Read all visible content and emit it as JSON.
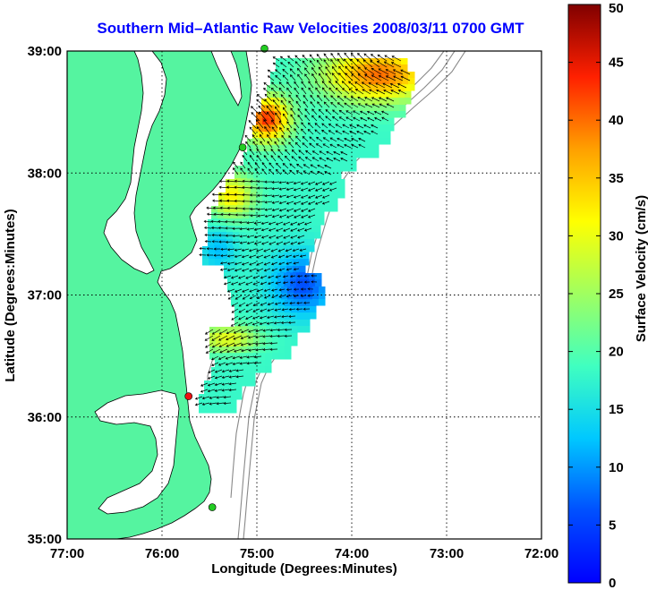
{
  "title": "Southern Mid–Atlantic Raw Velocities 2008/03/11 0700 GMT",
  "x_axis": {
    "label": "Longitude (Degrees:Minutes)",
    "ticks": [
      {
        "value": -77,
        "label": "77:00"
      },
      {
        "value": -76,
        "label": "76:00"
      },
      {
        "value": -75,
        "label": "75:00"
      },
      {
        "value": -74,
        "label": "74:00"
      },
      {
        "value": -73,
        "label": "73:00"
      },
      {
        "value": -72,
        "label": "72:00"
      }
    ],
    "range": [
      -77,
      -72
    ]
  },
  "y_axis": {
    "label": "Latitude (Degrees:Minutes)",
    "ticks": [
      {
        "value": 35,
        "label": "35:00"
      },
      {
        "value": 36,
        "label": "36:00"
      },
      {
        "value": 37,
        "label": "37:00"
      },
      {
        "value": 38,
        "label": "38:00"
      },
      {
        "value": 39,
        "label": "39:00"
      }
    ],
    "range": [
      35,
      39
    ]
  },
  "colorbar": {
    "label": "Surface Velocity (cm/s)",
    "range": [
      0,
      50
    ],
    "ticks": [
      {
        "value": 0,
        "label": "0"
      },
      {
        "value": 5,
        "label": "5"
      },
      {
        "value": 10,
        "label": "10"
      },
      {
        "value": 15,
        "label": "15"
      },
      {
        "value": 20,
        "label": "20"
      },
      {
        "value": 25,
        "label": "25"
      },
      {
        "value": 30,
        "label": "30"
      },
      {
        "value": 35,
        "label": "35"
      },
      {
        "value": 40,
        "label": "40"
      },
      {
        "value": 45,
        "label": "45"
      },
      {
        "value": 50,
        "label": "50"
      }
    ]
  },
  "colors": {
    "land": "#55f4a0",
    "water": "#ffffff",
    "coastline": "#000000",
    "bathymetry": "#888888",
    "grid": "#000000",
    "title": "#0000ff",
    "station_active": "#22cc22",
    "station_alert": "#ee1111"
  },
  "stations": [
    {
      "lon": -74.92,
      "lat": 39.02,
      "status": "active"
    },
    {
      "lon": -75.15,
      "lat": 38.21,
      "status": "active"
    },
    {
      "lon": -75.72,
      "lat": 36.17,
      "status": "alert"
    },
    {
      "lon": -75.47,
      "lat": 35.26,
      "status": "active"
    }
  ]
}
